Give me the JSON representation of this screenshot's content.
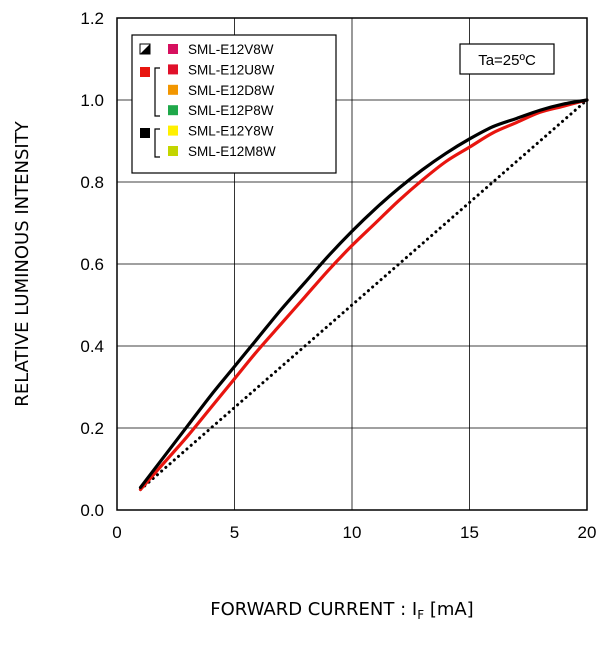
{
  "chart_data": {
    "type": "line",
    "title": "",
    "xlabel": {
      "main": "FORWARD CURRENT : I",
      "sub": "F",
      "unit": " [mA]"
    },
    "ylabel": "RELATIVE LUMINOUS INTENSITY",
    "xlim": [
      0,
      20
    ],
    "ylim": [
      0,
      1.2
    ],
    "xticks": [
      "0",
      "5",
      "10",
      "15",
      "20"
    ],
    "yticks": [
      "0.0",
      "0.2",
      "0.4",
      "0.6",
      "0.8",
      "1.0",
      "1.2"
    ],
    "grid": true,
    "annotation": "Ta=25ºC",
    "legend": {
      "position": "top-left",
      "entries": [
        {
          "label": "SML-E12V8W",
          "color": "#d6105e"
        },
        {
          "label": "SML-E12U8W",
          "color": "#e0102a"
        },
        {
          "label": "SML-E12D8W",
          "color": "#f29600"
        },
        {
          "label": "SML-E12P8W",
          "color": "#1fa84a"
        },
        {
          "label": "SML-E12Y8W",
          "color": "#fff000"
        },
        {
          "label": "SML-E12M8W",
          "color": "#c3d500"
        }
      ]
    },
    "series": [
      {
        "color": "#000000",
        "style": "solid",
        "x": [
          1,
          2,
          3,
          4,
          5,
          6,
          7,
          8,
          9,
          10,
          11,
          12,
          13,
          14,
          15,
          16,
          17,
          18,
          19,
          20
        ],
        "y": [
          0.055,
          0.13,
          0.205,
          0.28,
          0.35,
          0.42,
          0.49,
          0.555,
          0.62,
          0.68,
          0.735,
          0.785,
          0.83,
          0.87,
          0.905,
          0.935,
          0.955,
          0.975,
          0.99,
          1.0
        ]
      },
      {
        "color": "#e8150f",
        "style": "solid",
        "x": [
          1,
          2,
          3,
          4,
          5,
          6,
          7,
          8,
          9,
          10,
          11,
          12,
          13,
          14,
          15,
          16,
          17,
          18,
          19,
          20
        ],
        "y": [
          0.05,
          0.115,
          0.18,
          0.25,
          0.32,
          0.39,
          0.455,
          0.52,
          0.585,
          0.645,
          0.7,
          0.755,
          0.805,
          0.85,
          0.885,
          0.92,
          0.945,
          0.97,
          0.985,
          1.0
        ]
      },
      {
        "color": "#000000",
        "style": "dotted",
        "x": [
          1,
          20
        ],
        "y": [
          0.05,
          1.0
        ]
      }
    ]
  }
}
